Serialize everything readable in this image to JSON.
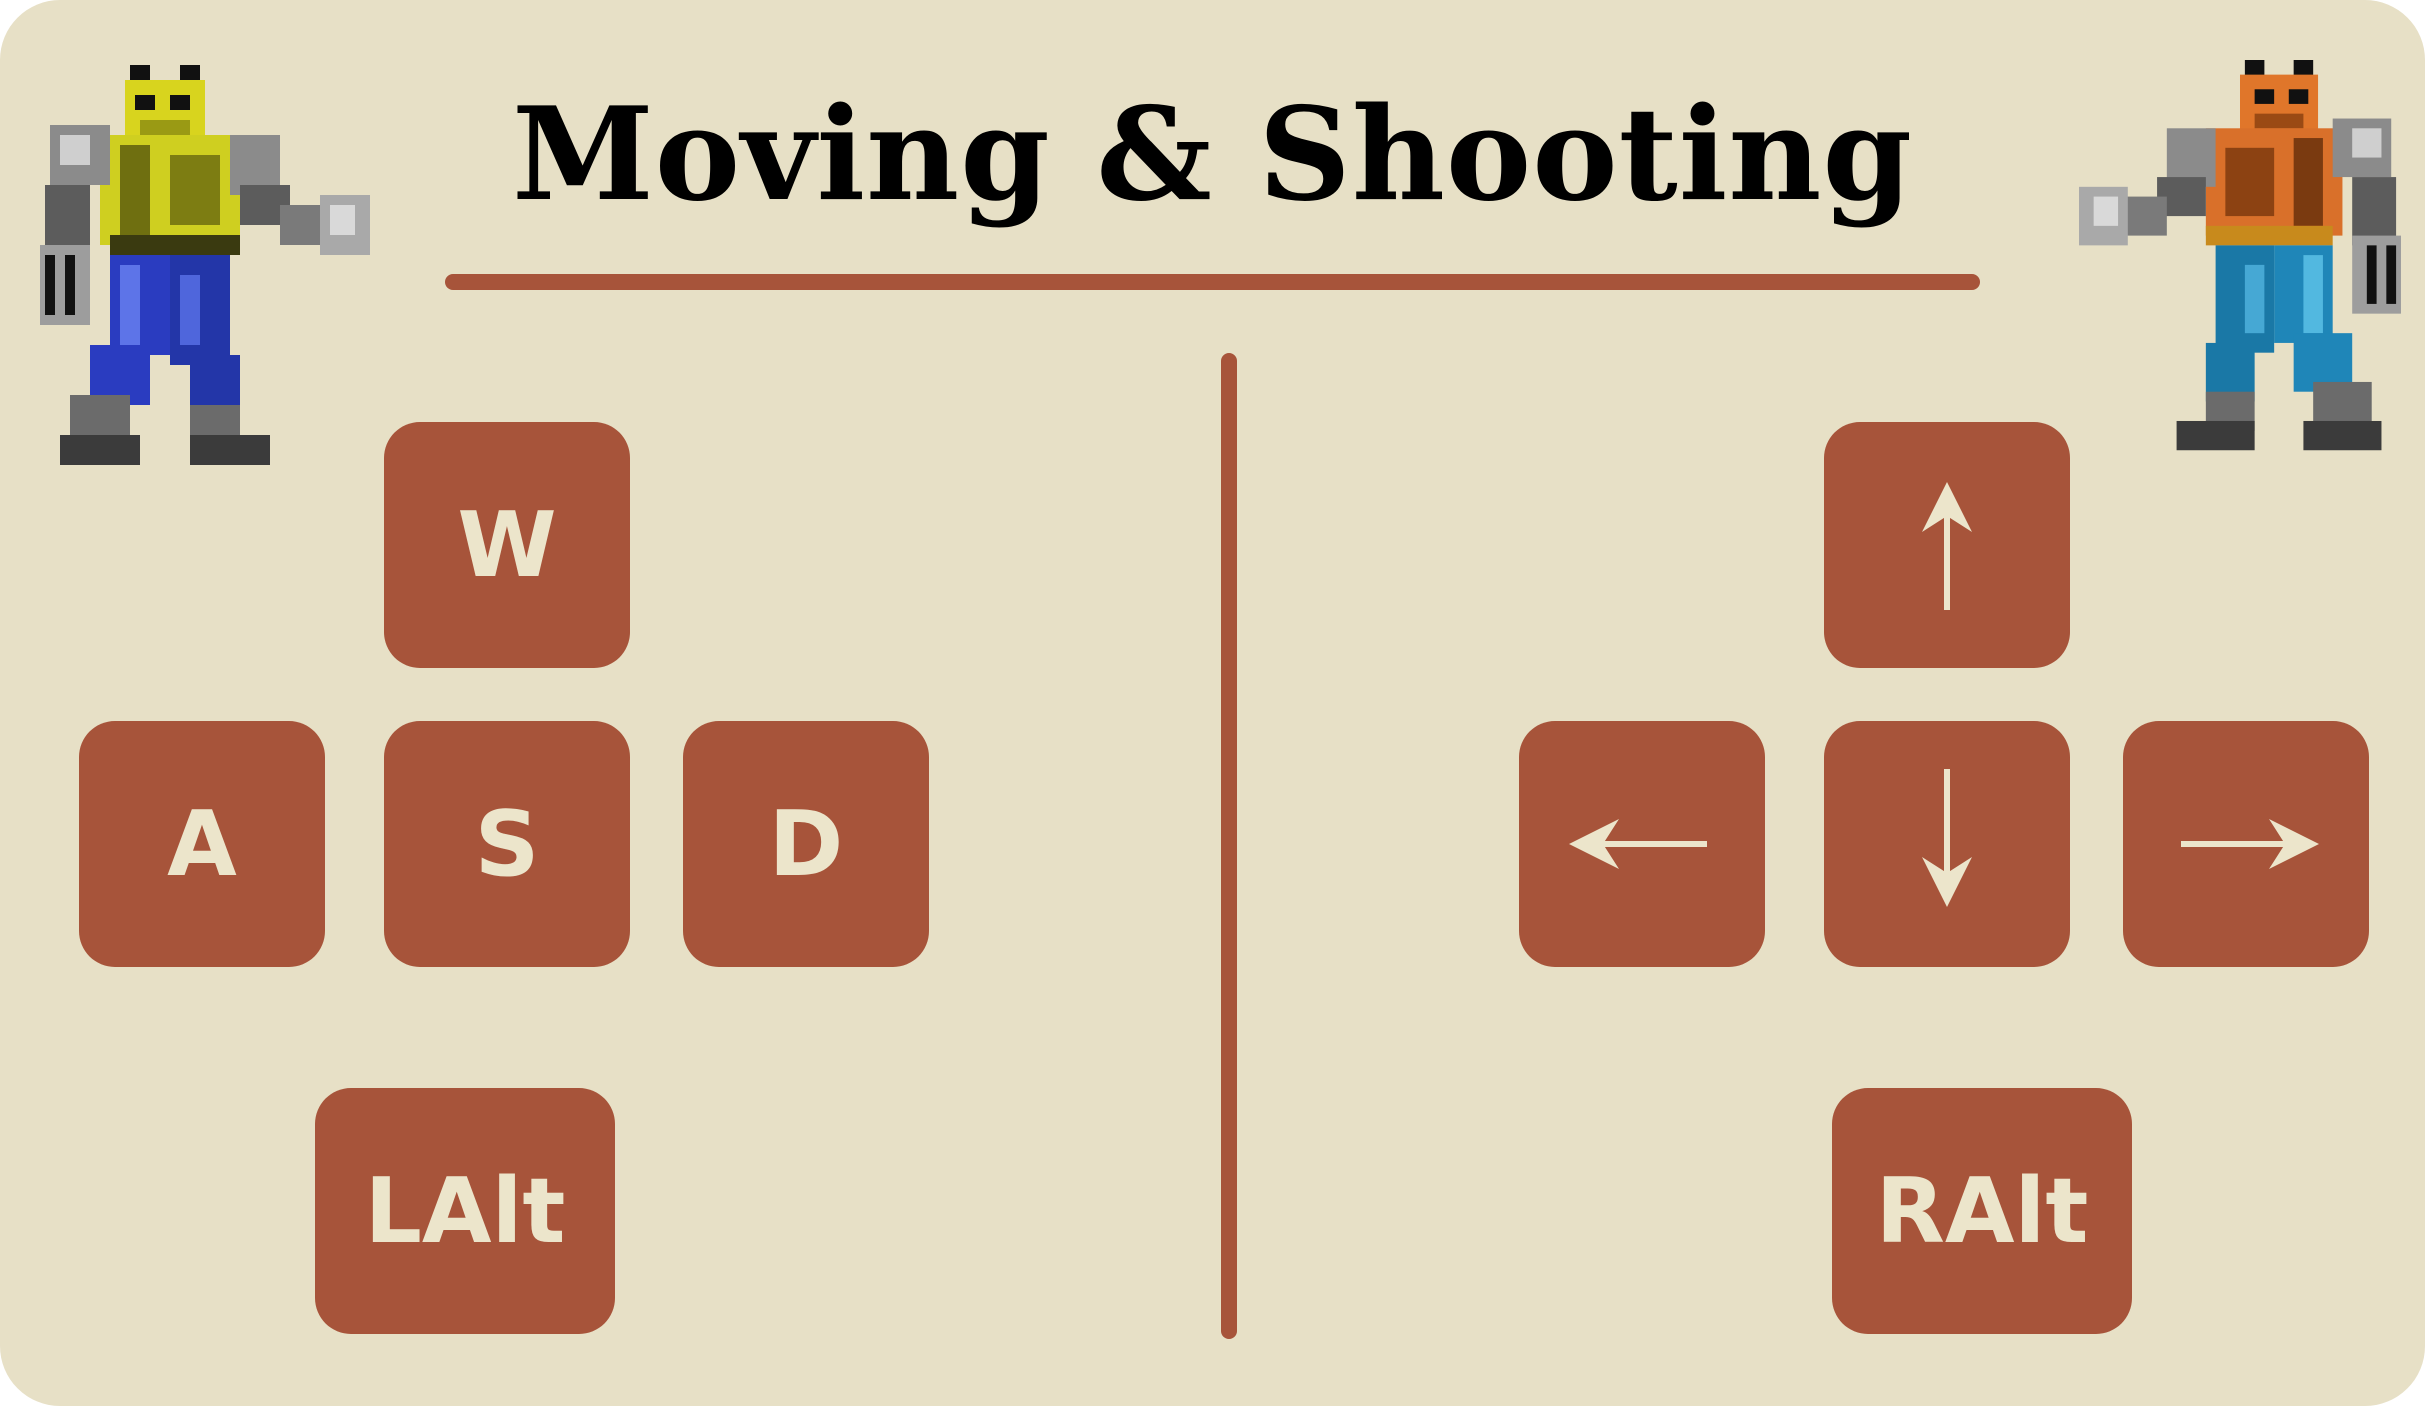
{
  "title": "Moving & Shooting",
  "colors": {
    "background": "#e7e0c6",
    "accent": "#a7543a",
    "key_text": "#ece5cb",
    "title_text": "#000000"
  },
  "players": [
    {
      "side": "left",
      "sprite": "yellow-fighter-icon",
      "keys": {
        "up": "W",
        "left": "A",
        "down": "S",
        "right": "D",
        "fire": "LAlt"
      }
    },
    {
      "side": "right",
      "sprite": "orange-fighter-icon",
      "keys": {
        "up": "arrow-up-icon",
        "left": "arrow-left-icon",
        "down": "arrow-down-icon",
        "right": "arrow-right-icon",
        "fire": "RAlt"
      }
    }
  ]
}
